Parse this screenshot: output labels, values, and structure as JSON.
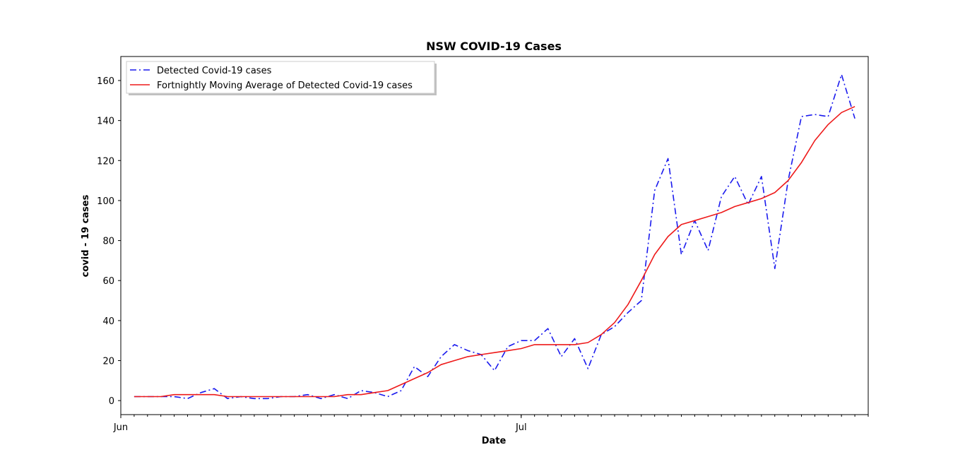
{
  "chart_data": {
    "type": "line",
    "title": "NSW COVID-19 Cases",
    "xlabel": "Date",
    "ylabel": "covid - 19 cases",
    "x_start": "2021-06-02",
    "x": [
      "2021-06-02",
      "2021-06-03",
      "2021-06-04",
      "2021-06-05",
      "2021-06-06",
      "2021-06-07",
      "2021-06-08",
      "2021-06-09",
      "2021-06-10",
      "2021-06-11",
      "2021-06-12",
      "2021-06-13",
      "2021-06-14",
      "2021-06-15",
      "2021-06-16",
      "2021-06-17",
      "2021-06-18",
      "2021-06-19",
      "2021-06-20",
      "2021-06-21",
      "2021-06-22",
      "2021-06-23",
      "2021-06-24",
      "2021-06-25",
      "2021-06-26",
      "2021-06-27",
      "2021-06-28",
      "2021-06-29",
      "2021-06-30",
      "2021-07-01",
      "2021-07-02",
      "2021-07-03",
      "2021-07-04",
      "2021-07-05",
      "2021-07-06",
      "2021-07-07",
      "2021-07-08",
      "2021-07-09",
      "2021-07-10",
      "2021-07-11",
      "2021-07-12",
      "2021-07-13",
      "2021-07-14",
      "2021-07-15",
      "2021-07-16",
      "2021-07-17",
      "2021-07-18",
      "2021-07-19",
      "2021-07-20",
      "2021-07-21",
      "2021-07-22",
      "2021-07-23",
      "2021-07-24",
      "2021-07-25",
      "2021-07-26"
    ],
    "xlim": [
      "2021-06-01",
      "2021-07-27"
    ],
    "x_ticks": [
      {
        "date": "2021-06-01",
        "label": "Jun"
      },
      {
        "date": "2021-07-01",
        "label": "Jul"
      }
    ],
    "x_minor_ticks": "daily",
    "ylim": [
      -7,
      172
    ],
    "y_ticks": [
      0,
      20,
      40,
      60,
      80,
      100,
      120,
      140,
      160
    ],
    "grid": false,
    "legend_position": "top-left",
    "series": [
      {
        "name": "Detected Covid-19 cases",
        "style": "dashdot",
        "color": "#1a1aee",
        "values": [
          2,
          2,
          2,
          2,
          1,
          4,
          6,
          1,
          2,
          1,
          1,
          2,
          2,
          3,
          1,
          3,
          1,
          5,
          4,
          2,
          5,
          17,
          12,
          22,
          28,
          25,
          23,
          15,
          27,
          30,
          30,
          36,
          22,
          31,
          16,
          33,
          37,
          44,
          50,
          105,
          121,
          73,
          90,
          75,
          102,
          112,
          98,
          112,
          66,
          110,
          142,
          143,
          142,
          163,
          141
        ]
      },
      {
        "name": "Fortnightly Moving Average of Detected Covid-19 cases",
        "style": "solid",
        "color": "#ee1a1a",
        "values": [
          2,
          2,
          2,
          3,
          3,
          3,
          3,
          2,
          2,
          2,
          2,
          2,
          2,
          2,
          2,
          2,
          3,
          3,
          4,
          5,
          8,
          11,
          14,
          18,
          20,
          22,
          23,
          24,
          25,
          26,
          28,
          28,
          28,
          28,
          29,
          33,
          39,
          48,
          60,
          73,
          82,
          88,
          90,
          92,
          94,
          97,
          99,
          101,
          104,
          110,
          119,
          130,
          138,
          144,
          147
        ]
      }
    ]
  }
}
